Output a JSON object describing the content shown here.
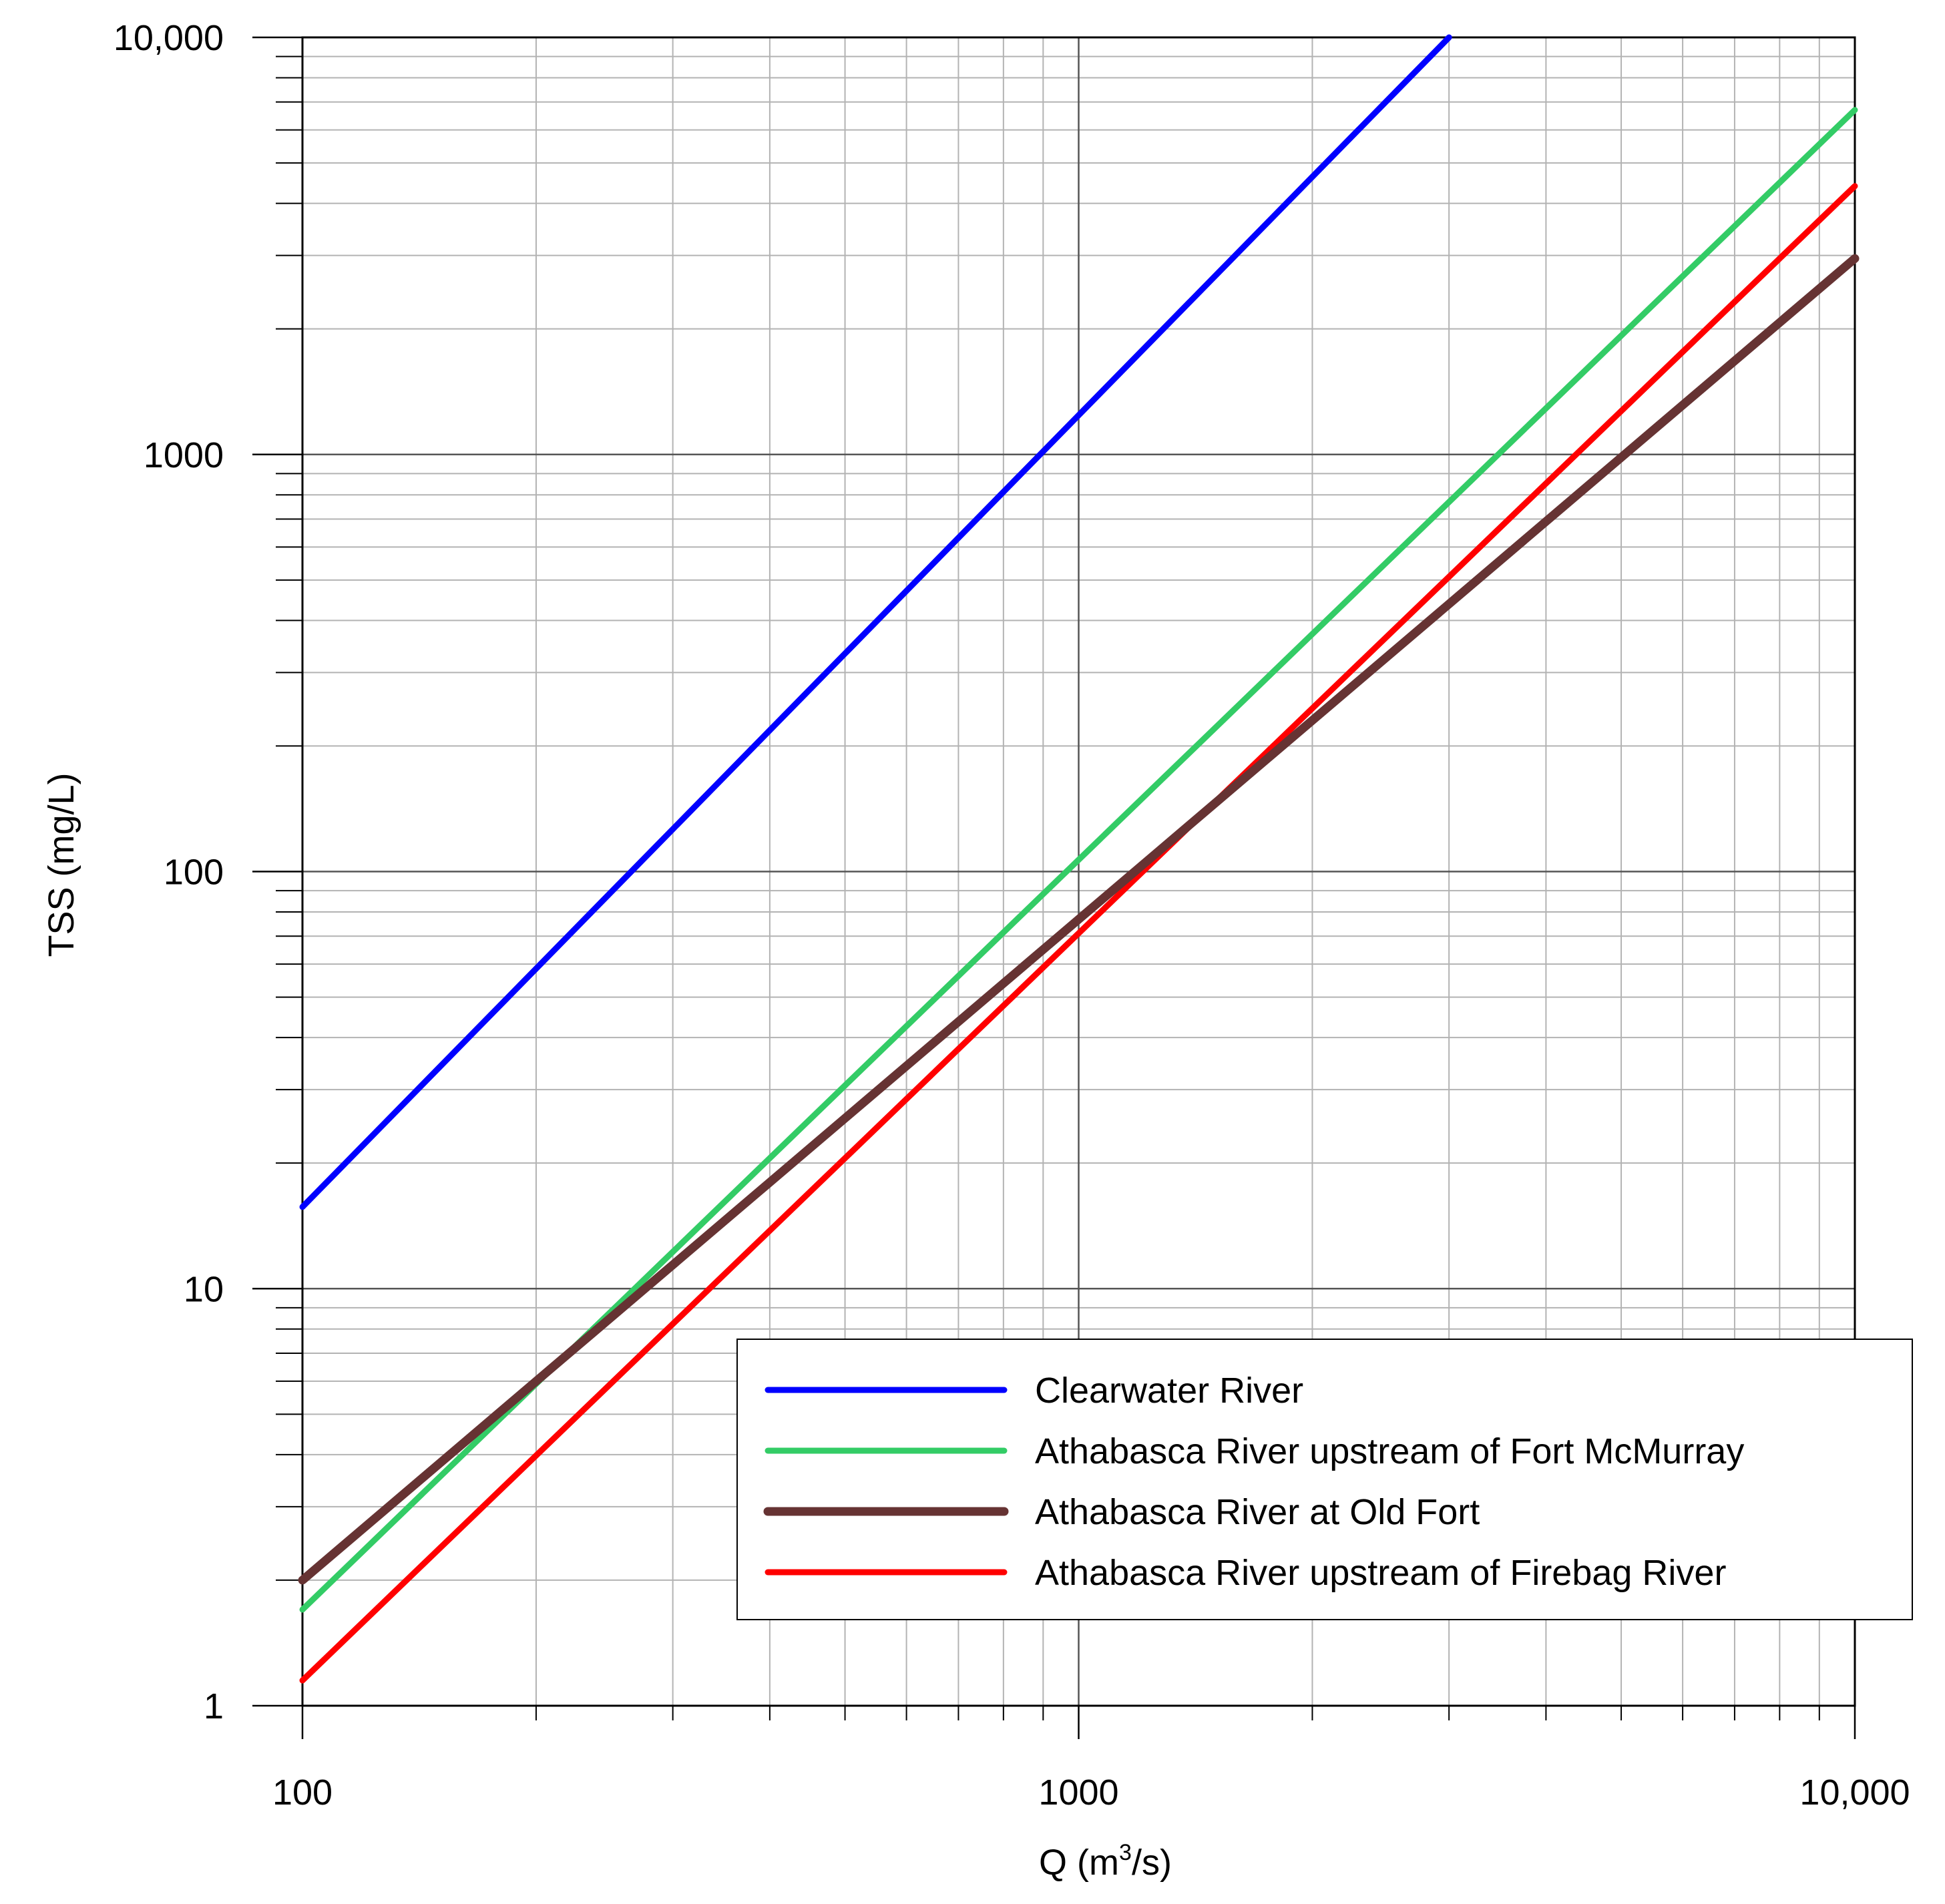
{
  "chart_data": {
    "type": "line",
    "xscale": "log",
    "yscale": "log",
    "xlim": [
      100,
      10000
    ],
    "ylim": [
      1,
      10000
    ],
    "grid": true,
    "xlabel_main": "Q (m",
    "xlabel_sup": "3",
    "xlabel_tail": "/s)",
    "ylabel": "TSS (mg/L)",
    "x_ticks": [
      {
        "value": 100,
        "label": "100"
      },
      {
        "value": 1000,
        "label": "1000"
      },
      {
        "value": 10000,
        "label": "10,000"
      }
    ],
    "y_ticks": [
      {
        "value": 1,
        "label": "1"
      },
      {
        "value": 10,
        "label": "10"
      },
      {
        "value": 100,
        "label": "100"
      },
      {
        "value": 1000,
        "label": "1000"
      },
      {
        "value": 10000,
        "label": "10,000"
      }
    ],
    "legend_position": "bottom-right",
    "series": [
      {
        "name": "Clearwater River",
        "color": "#0000ff",
        "x": [
          100,
          3000
        ],
        "y": [
          15.7,
          10000
        ]
      },
      {
        "name": "Athabasca River upstream of Fort McMurray",
        "color": "#33cc66",
        "x": [
          100,
          10000
        ],
        "y": [
          1.7,
          6700
        ]
      },
      {
        "name": "Athabasca River at Old Fort",
        "color": "#663333",
        "x": [
          100,
          10000
        ],
        "y": [
          2.0,
          2950
        ]
      },
      {
        "name": "Athabasca River upstream of Firebag River",
        "color": "#ff0000",
        "x": [
          100,
          10000
        ],
        "y": [
          1.15,
          4400
        ]
      }
    ]
  }
}
